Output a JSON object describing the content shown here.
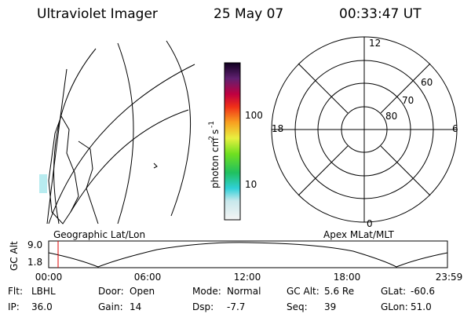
{
  "header": {
    "title": "Ultraviolet Imager",
    "date": "25 May 07",
    "time": "00:33:47 UT"
  },
  "colorbar": {
    "label": {
      "base": "photon cm",
      "exp1": "-2",
      "unit": "s",
      "exp2": "-1"
    },
    "ticks": [
      "100",
      "10"
    ]
  },
  "polar": {
    "labels": [
      "12",
      "18",
      "6",
      "0",
      "60",
      "70",
      "80"
    ],
    "caption": "Apex MLat/MLT"
  },
  "map": {
    "caption": "Geographic Lat/Lon"
  },
  "alt_plot": {
    "ylabel": "GC Alt",
    "yticks": [
      "9.0",
      "1.8"
    ],
    "xticks": [
      "00:00",
      "06:00",
      "12:00",
      "18:00",
      "23:59"
    ]
  },
  "footer": [
    [
      {
        "label": "Flt:",
        "value": "LBHL"
      },
      {
        "label": "Door:",
        "value": "Open"
      },
      {
        "label": "Mode:",
        "value": "Normal"
      },
      {
        "label": "GC Alt:",
        "value": "5.6 Re"
      },
      {
        "label": "GLat:",
        "value": "-60.6"
      }
    ],
    [
      {
        "label": "IP:",
        "value": "36.0"
      },
      {
        "label": "Gain:",
        "value": "14"
      },
      {
        "label": "Dsp:",
        "value": "-7.7"
      },
      {
        "label": "Seq:",
        "value": "39"
      },
      {
        "label": "GLon:",
        "value": "51.0"
      }
    ]
  ]
}
